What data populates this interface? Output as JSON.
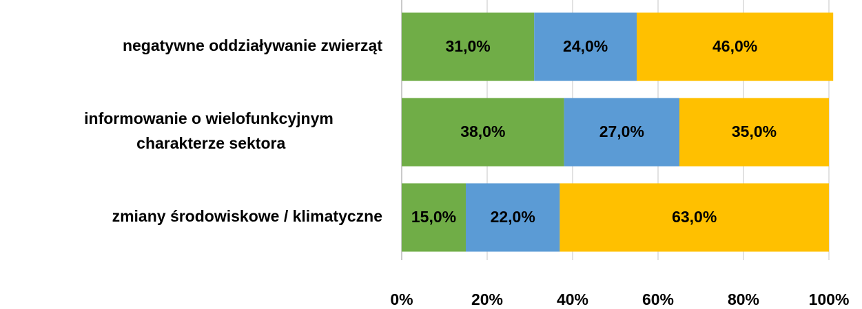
{
  "chart_data": {
    "type": "bar",
    "orientation": "horizontal",
    "stacked": true,
    "categories": [
      "negatywne oddziaływanie zwierząt",
      "informowanie o wielofunkcyjnym charakterze sektora",
      "zmiany środowiskowe / klimatyczne"
    ],
    "series": [
      {
        "color": "#70ad47",
        "values": [
          31,
          38,
          15
        ],
        "value_labels": [
          "31,0%",
          "38,0%",
          "15,0%"
        ]
      },
      {
        "color": "#5b9bd5",
        "values": [
          24,
          27,
          22
        ],
        "value_labels": [
          "24,0%",
          "27,0%",
          "22,0%"
        ]
      },
      {
        "color": "#ffc000",
        "values": [
          46,
          35,
          63
        ],
        "value_labels": [
          "46,0%",
          "35,0%",
          "63,0%"
        ]
      }
    ],
    "xlim": [
      0,
      100
    ],
    "xticks": [
      {
        "value": 0,
        "label": "0%"
      },
      {
        "value": 20,
        "label": "20%"
      },
      {
        "value": 40,
        "label": "40%"
      },
      {
        "value": 60,
        "label": "60%"
      },
      {
        "value": 80,
        "label": "80%"
      },
      {
        "value": 100,
        "label": "100%"
      }
    ],
    "grid": true
  }
}
